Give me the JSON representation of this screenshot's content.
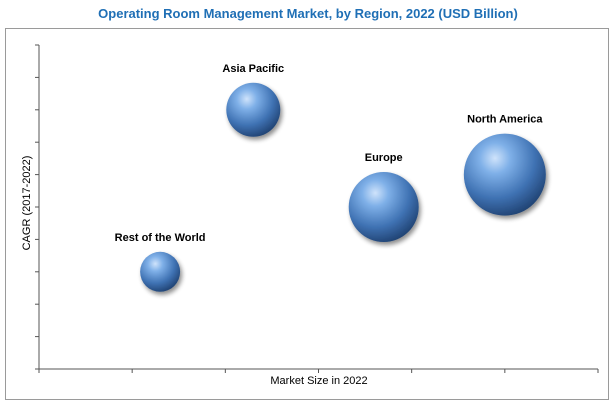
{
  "chart_data": {
    "type": "bubble",
    "title": "Operating Room Management Market, by Region, 2022 (USD Billion)",
    "xlabel": "Market Size in 2022",
    "ylabel": "CAGR (2017-2022)",
    "grid": false,
    "series": [
      {
        "name": "North America",
        "x": 5.0,
        "y": 6.0,
        "size": 41,
        "color": "#4a7fc1"
      },
      {
        "name": "Europe",
        "x": 3.7,
        "y": 5.0,
        "size": 35,
        "color": "#4a7fc1"
      },
      {
        "name": "Asia Pacific",
        "x": 2.3,
        "y": 8.0,
        "size": 27,
        "color": "#4a7fc1"
      },
      {
        "name": "Rest of the World",
        "x": 1.3,
        "y": 3.0,
        "size": 20,
        "color": "#4a7fc1"
      }
    ],
    "xlim": [
      0,
      6
    ],
    "ylim": [
      0,
      10
    ]
  }
}
